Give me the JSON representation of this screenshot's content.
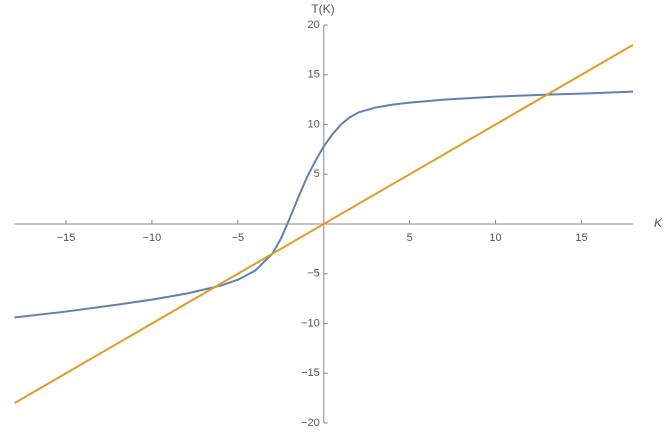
{
  "chart_data": {
    "type": "line",
    "x_label": "K",
    "y_label": "T(K)",
    "xlim": [
      -18,
      18
    ],
    "ylim": [
      -20,
      20
    ],
    "xticks": [
      {
        "value": -15,
        "label": "−15"
      },
      {
        "value": -10,
        "label": "−10"
      },
      {
        "value": -5,
        "label": "−5"
      },
      5,
      10,
      15
    ],
    "yticks": [
      {
        "value": -20,
        "label": "−20"
      },
      {
        "value": -15,
        "label": "−15"
      },
      {
        "value": -10,
        "label": "−10"
      },
      {
        "value": -5,
        "label": "−5"
      },
      5,
      10,
      15,
      20
    ],
    "series": [
      {
        "color": "#5e81b5",
        "x": [
          -18,
          -15,
          -12,
          -10,
          -8,
          -6,
          -5,
          -4,
          -3,
          -2.5,
          -2,
          -1.5,
          -1,
          -0.5,
          0,
          0.5,
          1,
          1.5,
          2,
          3,
          4,
          5,
          7,
          10,
          13,
          15,
          18
        ],
        "values": [
          -9.4,
          -8.8,
          -8.1,
          -7.6,
          -7.0,
          -6.2,
          -5.6,
          -4.7,
          -3.0,
          -1.5,
          0.5,
          2.6,
          4.6,
          6.3,
          7.8,
          9.0,
          10.0,
          10.7,
          11.2,
          11.7,
          12.0,
          12.2,
          12.5,
          12.8,
          13.0,
          13.1,
          13.3
        ]
      },
      {
        "color": "#e19c24",
        "x": [
          -18,
          18
        ],
        "values": [
          -18,
          18
        ]
      }
    ]
  }
}
